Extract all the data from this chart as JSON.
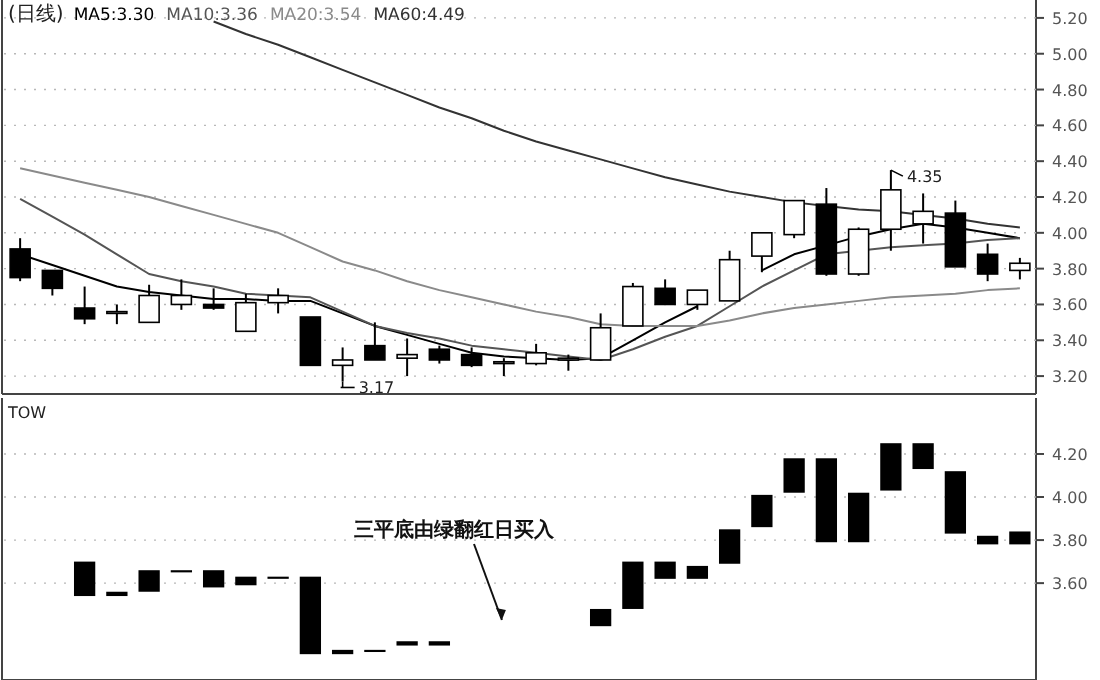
{
  "chart_data": [
    {
      "type": "candlestick",
      "title": "(日线)",
      "legend": "top left",
      "grid": "y",
      "color": "#000000",
      "categories": [
        null,
        null,
        null,
        null,
        null,
        null,
        null,
        null,
        null,
        null,
        null,
        null,
        null,
        null,
        null,
        null,
        null,
        null,
        null,
        null,
        null,
        null,
        null,
        null,
        null,
        null,
        null,
        null,
        null,
        null,
        null,
        null
      ],
      "ohlc": [
        [
          3.91,
          3.97,
          3.73,
          3.75
        ],
        [
          3.79,
          3.79,
          3.65,
          3.69
        ],
        [
          3.58,
          3.7,
          3.49,
          3.52
        ],
        [
          3.55,
          3.6,
          3.49,
          3.56
        ],
        [
          3.5,
          3.71,
          3.5,
          3.65
        ],
        [
          3.6,
          3.74,
          3.57,
          3.65
        ],
        [
          3.6,
          3.69,
          3.57,
          3.58
        ],
        [
          3.45,
          3.66,
          3.45,
          3.61
        ],
        [
          3.61,
          3.69,
          3.55,
          3.65
        ],
        [
          3.53,
          3.53,
          3.26,
          3.26
        ],
        [
          3.26,
          3.36,
          3.17,
          3.29
        ],
        [
          3.37,
          3.5,
          3.29,
          3.29
        ],
        [
          3.3,
          3.41,
          3.2,
          3.32
        ],
        [
          3.35,
          3.37,
          3.27,
          3.29
        ],
        [
          3.32,
          3.36,
          3.25,
          3.26
        ],
        [
          3.27,
          3.3,
          3.2,
          3.28
        ],
        [
          3.27,
          3.38,
          3.26,
          3.33
        ],
        [
          3.29,
          3.32,
          3.23,
          3.3
        ],
        [
          3.29,
          3.55,
          3.29,
          3.47
        ],
        [
          3.48,
          3.72,
          3.48,
          3.7
        ],
        [
          3.69,
          3.74,
          3.6,
          3.6
        ],
        [
          3.6,
          3.68,
          3.57,
          3.68
        ],
        [
          3.62,
          3.9,
          3.62,
          3.85
        ],
        [
          3.87,
          4.0,
          3.78,
          4.0
        ],
        [
          3.99,
          4.18,
          3.97,
          4.18
        ],
        [
          4.16,
          4.25,
          3.76,
          3.77
        ],
        [
          3.77,
          4.03,
          3.76,
          4.02
        ],
        [
          4.02,
          4.35,
          3.9,
          4.24
        ],
        [
          4.05,
          4.22,
          3.94,
          4.12
        ],
        [
          4.11,
          4.18,
          3.81,
          3.81
        ],
        [
          3.88,
          3.94,
          3.73,
          3.77
        ],
        [
          3.79,
          3.86,
          3.74,
          3.83
        ]
      ],
      "series": [
        {
          "name": "MA5:3.30",
          "type": "line",
          "color": "#000000",
          "values": [
            3.88,
            3.82,
            3.76,
            3.7,
            3.67,
            3.65,
            3.63,
            3.63,
            3.62,
            3.62,
            3.55,
            3.48,
            3.43,
            3.38,
            3.33,
            3.31,
            3.3,
            3.29,
            3.3,
            3.4,
            3.5,
            3.59,
            null,
            3.79,
            3.88,
            3.93,
            3.98,
            4.02,
            4.05,
            4.03,
            4.0,
            3.97
          ]
        },
        {
          "name": "MA10:3.36",
          "type": "line",
          "color": "#555555",
          "values": [
            4.19,
            4.09,
            3.99,
            3.88,
            3.77,
            3.73,
            3.7,
            3.66,
            3.65,
            3.64,
            3.56,
            3.48,
            3.44,
            3.41,
            3.37,
            3.35,
            3.33,
            3.31,
            3.29,
            3.35,
            3.42,
            3.48,
            3.59,
            3.7,
            3.79,
            3.88,
            3.9,
            3.92,
            3.93,
            3.94,
            3.96,
            3.97
          ]
        },
        {
          "name": "MA20:3.54",
          "type": "line",
          "color": "#8a8a8a",
          "values": [
            4.36,
            4.32,
            4.28,
            4.24,
            4.2,
            4.15,
            4.1,
            4.05,
            4.0,
            3.92,
            3.84,
            3.79,
            3.73,
            3.68,
            3.64,
            3.6,
            3.56,
            3.53,
            3.49,
            3.48,
            3.48,
            3.48,
            3.51,
            3.55,
            3.58,
            3.6,
            3.62,
            3.64,
            3.65,
            3.66,
            3.68,
            3.69
          ]
        },
        {
          "name": "MA60:4.49",
          "type": "line",
          "color": "#333333",
          "values": [
            null,
            null,
            null,
            null,
            null,
            null,
            5.18,
            5.11,
            5.05,
            4.98,
            4.91,
            4.84,
            4.77,
            4.7,
            4.64,
            4.57,
            4.51,
            4.46,
            4.41,
            4.36,
            4.31,
            4.27,
            4.23,
            4.2,
            4.17,
            4.15,
            4.13,
            4.12,
            4.1,
            4.08,
            4.05,
            4.03
          ]
        }
      ],
      "ylim": [
        3.1,
        5.3
      ],
      "yticks": [
        {
          "value": 3.2,
          "label": "3.20"
        },
        {
          "value": 3.4,
          "label": "3.40"
        },
        {
          "value": 3.6,
          "label": "3.60"
        },
        {
          "value": 3.8,
          "label": "3.80"
        },
        {
          "value": 4.0,
          "label": "4.00"
        },
        {
          "value": 4.2,
          "label": "4.20"
        },
        {
          "value": 4.4,
          "label": "4.40"
        },
        {
          "value": 4.6,
          "label": "4.60"
        },
        {
          "value": 4.8,
          "label": "4.80"
        },
        {
          "value": 5.0,
          "label": "5.00"
        },
        {
          "value": 5.2,
          "label": "5.20"
        }
      ],
      "annotations": [
        "3.17",
        "4.35"
      ]
    },
    {
      "type": "bar",
      "title": "TOW",
      "grid": "y",
      "color": "#000000",
      "categories": [
        null,
        null,
        null,
        null,
        null,
        null,
        null,
        null,
        null,
        null,
        null,
        null,
        null,
        null,
        null,
        null,
        null,
        null,
        null,
        null,
        null,
        null,
        null,
        null,
        null,
        null,
        null,
        null,
        null,
        null,
        null,
        null
      ],
      "base": [
        null,
        null,
        3.54,
        3.54,
        3.56,
        3.65,
        3.58,
        3.59,
        3.62,
        3.27,
        3.27,
        3.28,
        3.31,
        3.31,
        null,
        null,
        null,
        null,
        3.4,
        3.48,
        3.62,
        3.62,
        3.69,
        3.86,
        4.02,
        3.79,
        3.79,
        4.03,
        4.13,
        3.83,
        3.78,
        3.78
      ],
      "values": [
        null,
        null,
        0.16,
        0.02,
        0.1,
        0.01,
        0.08,
        0.04,
        0.01,
        0.36,
        0.02,
        0.01,
        0.02,
        0.02,
        null,
        null,
        null,
        null,
        0.08,
        0.22,
        0.08,
        0.06,
        0.16,
        0.15,
        0.16,
        0.39,
        0.23,
        0.22,
        0.12,
        0.29,
        0.04,
        0.06
      ],
      "ylim": [
        3.15,
        4.46
      ],
      "yticks": [
        {
          "value": 3.6,
          "label": "3.60"
        },
        {
          "value": 3.8,
          "label": "3.80"
        },
        {
          "value": 4.0,
          "label": "4.00"
        },
        {
          "value": 4.2,
          "label": "4.20"
        }
      ],
      "annotations": [
        "三平底由绿翻红日买入"
      ]
    }
  ]
}
